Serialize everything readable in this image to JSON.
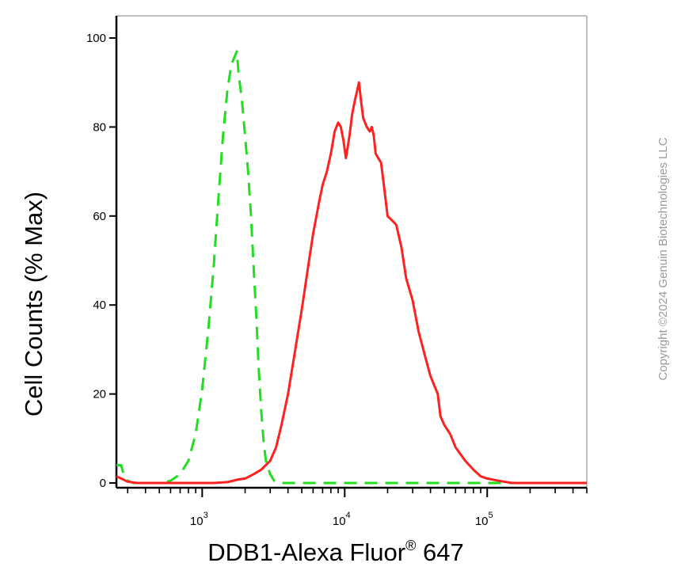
{
  "chart_data": {
    "type": "line",
    "title": "",
    "xlabel": "DDB1-Alexa Fluor",
    "xlabel_sup": "®",
    "xlabel_suffix": " 647",
    "ylabel": "Cell Counts (% Max)",
    "xscale": "log",
    "xlim": [
      250,
      500000
    ],
    "ylim": [
      0,
      105
    ],
    "y_ticks": [
      0,
      20,
      40,
      60,
      80,
      100
    ],
    "x_major_ticks": [
      {
        "value": 1000,
        "base": "10",
        "exp": "3"
      },
      {
        "value": 10000,
        "base": "10",
        "exp": "4"
      },
      {
        "value": 100000,
        "base": "10",
        "exp": "5"
      }
    ],
    "grid": false,
    "series": [
      {
        "name": "",
        "color": "#22dd22",
        "style": "dashed",
        "x": [
          250,
          270,
          280,
          300,
          330,
          380,
          450,
          520,
          600,
          700,
          800,
          900,
          1000,
          1100,
          1200,
          1300,
          1400,
          1500,
          1600,
          1700,
          1750,
          1800,
          1900,
          2000,
          2100,
          2200,
          2300,
          2400,
          2500,
          2600,
          2700,
          2800,
          3000,
          3200,
          3500,
          4000,
          5000,
          10000,
          20000,
          50000,
          100000,
          200000,
          500000
        ],
        "y": [
          4,
          4,
          2,
          0.5,
          0,
          0,
          0,
          0,
          0.5,
          2,
          5,
          11,
          21,
          34,
          48,
          64,
          78,
          88,
          94,
          96,
          97,
          92,
          86,
          78,
          70,
          60,
          48,
          37,
          25,
          16,
          9,
          5,
          2,
          0.5,
          0,
          0,
          0,
          0,
          0,
          0,
          0,
          0,
          0
        ]
      },
      {
        "name": "",
        "color": "#ff2020",
        "style": "solid",
        "x": [
          250,
          270,
          300,
          350,
          400,
          500,
          700,
          1000,
          1200,
          1500,
          1800,
          2000,
          2300,
          2600,
          3000,
          3300,
          3600,
          4000,
          4500,
          5000,
          5500,
          6000,
          6600,
          7000,
          7500,
          8000,
          8500,
          9000,
          9400,
          9800,
          10200,
          10800,
          11300,
          11800,
          12200,
          12600,
          13000,
          13500,
          14300,
          15000,
          15500,
          16000,
          16500,
          17200,
          18000,
          19000,
          20000,
          21500,
          23000,
          25000,
          27000,
          30000,
          33000,
          37000,
          40000,
          45000,
          47000,
          50000,
          55000,
          60000,
          70000,
          80000,
          90000,
          100000,
          120000,
          150000,
          200000,
          500000
        ],
        "y": [
          1.5,
          1,
          0.3,
          0,
          0,
          0,
          0,
          0,
          0,
          0.2,
          0.8,
          1,
          2,
          3,
          5,
          8,
          13,
          20,
          30,
          39,
          48,
          56,
          63,
          67,
          70,
          74,
          79,
          81,
          80,
          77,
          73,
          78,
          83,
          86,
          88,
          90,
          86,
          82,
          80,
          79,
          80,
          78,
          74,
          73,
          72,
          66,
          60,
          59,
          58,
          53,
          46,
          41,
          34,
          28,
          24,
          20,
          15,
          13,
          11,
          8,
          5,
          3,
          1.5,
          1,
          0.5,
          0,
          0,
          0
        ]
      }
    ]
  },
  "watermark": {
    "text": "Copyright ©2024 Genuin Biotechnologies LLC"
  }
}
